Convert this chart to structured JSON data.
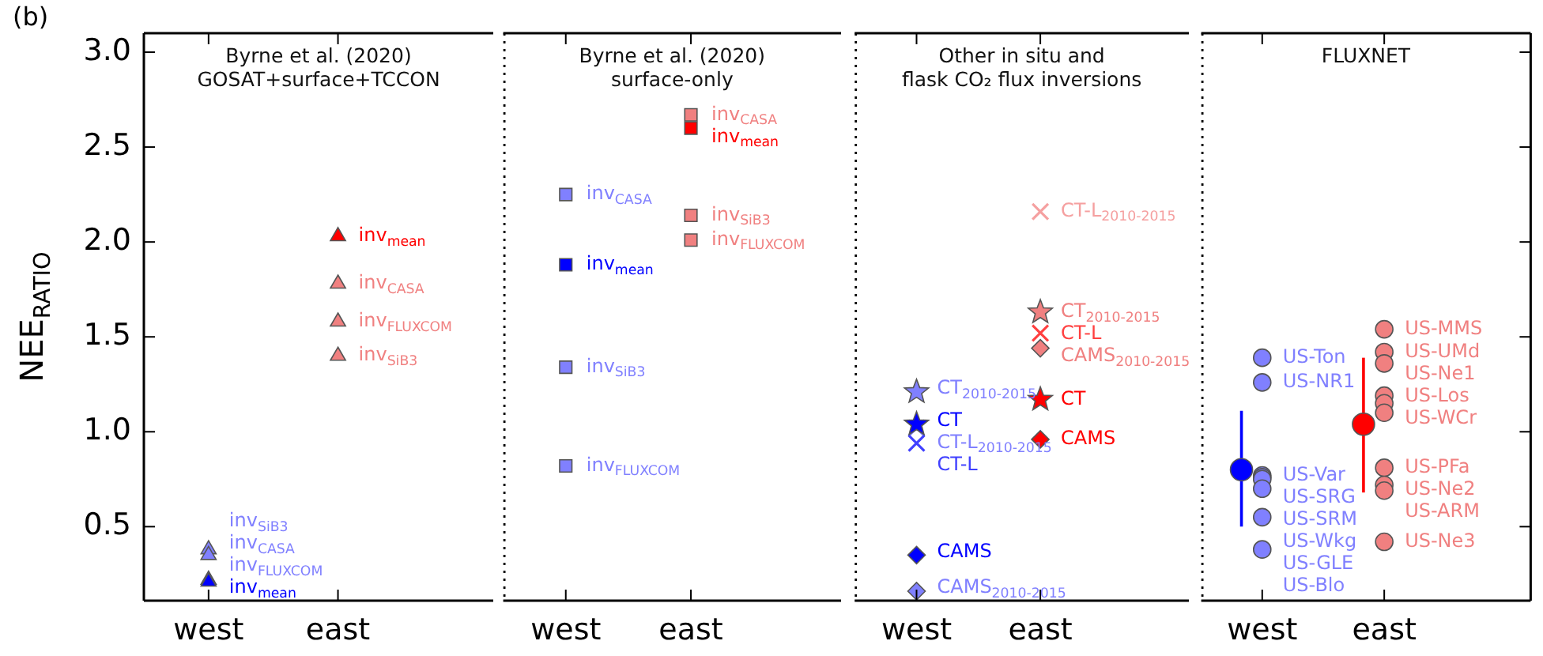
{
  "chart_data": [
    {
      "type": "scatter",
      "title": "Byrne et al. (2020)\nGOSAT+surface+TCCON",
      "ylabel": "NEE$_{RATIO}$",
      "annotations": [
        "(b)"
      ],
      "categories": [
        "west",
        "east"
      ],
      "ylim": [
        0.11,
        3.1
      ],
      "yticks": [
        0.5,
        {
          "value": 1,
          "label": "1.0"
        },
        1.5,
        {
          "value": 2,
          "label": "2.0"
        },
        2.5,
        {
          "value": 3,
          "label": "3.0"
        }
      ],
      "series": [
        {
          "type": "scatter",
          "marker": "triangle",
          "color": "#8080ff",
          "values": [
            0.38,
            null
          ],
          "value_labels": [
            "inv$_{SiB3}$",
            null
          ]
        },
        {
          "type": "scatter",
          "marker": "triangle",
          "color": "#8080ff",
          "values": [
            0.35,
            null
          ],
          "value_labels": [
            "inv$_{CASA}$",
            null
          ]
        },
        {
          "type": "scatter",
          "marker": "triangle",
          "color": "#8080ff",
          "values": [
            0.22,
            null
          ],
          "value_labels": [
            "inv$_{FLUXCOM}$",
            null
          ]
        },
        {
          "type": "scatter",
          "marker": "triangle",
          "color": "#0000ff",
          "values": [
            0.21,
            null
          ],
          "value_labels": [
            "inv$_{mean}$",
            null
          ]
        },
        {
          "type": "scatter",
          "marker": "triangle",
          "color": "#f08080",
          "values": [
            null,
            1.78
          ],
          "value_labels": [
            null,
            "inv$_{CASA}$"
          ]
        },
        {
          "type": "scatter",
          "marker": "triangle",
          "color": "#f08080",
          "values": [
            null,
            1.58
          ],
          "value_labels": [
            null,
            "inv$_{FLUXCOM}$"
          ]
        },
        {
          "type": "scatter",
          "marker": "triangle",
          "color": "#f08080",
          "values": [
            null,
            1.4
          ],
          "value_labels": [
            null,
            "inv$_{SiB3}$"
          ]
        },
        {
          "type": "scatter",
          "marker": "triangle",
          "color": "#ff0000",
          "values": [
            null,
            2.03
          ],
          "value_labels": [
            null,
            "inv$_{mean}$"
          ]
        }
      ]
    },
    {
      "type": "scatter",
      "title": "Byrne et al. (2020)\nsurface-only",
      "tick_labels": "x",
      "categories": [
        "west",
        "east"
      ],
      "ylim": [
        0.11,
        3.1
      ],
      "series": [
        {
          "type": "scatter",
          "marker": "square",
          "color": "#8080ff",
          "values": [
            2.25,
            null
          ],
          "value_labels": [
            "inv$_{CASA}$",
            null
          ]
        },
        {
          "type": "scatter",
          "marker": "square",
          "color": "#8080ff",
          "values": [
            1.34,
            null
          ],
          "value_labels": [
            "inv$_{SiB3}$",
            null
          ]
        },
        {
          "type": "scatter",
          "marker": "square",
          "color": "#8080ff",
          "values": [
            0.82,
            null
          ],
          "value_labels": [
            "inv$_{FLUXCOM}$",
            null
          ]
        },
        {
          "type": "scatter",
          "marker": "square",
          "color": "#0000ff",
          "values": [
            1.88,
            null
          ],
          "value_labels": [
            "inv$_{mean}$",
            null
          ]
        },
        {
          "type": "scatter",
          "marker": "square",
          "color": "#f08080",
          "values": [
            null,
            2.67
          ],
          "value_labels": [
            null,
            "inv$_{CASA}$"
          ]
        },
        {
          "type": "scatter",
          "marker": "square",
          "color": "#f08080",
          "values": [
            null,
            2.14
          ],
          "value_labels": [
            null,
            "inv$_{SiB3}$"
          ]
        },
        {
          "type": "scatter",
          "marker": "square",
          "color": "#f08080",
          "values": [
            null,
            2.01
          ],
          "value_labels": [
            null,
            "inv$_{FLUXCOM}$"
          ]
        },
        {
          "type": "scatter",
          "marker": "square",
          "color": "#ff0000",
          "values": [
            null,
            2.6
          ],
          "value_labels": [
            null,
            "inv$_{mean}$"
          ]
        }
      ]
    },
    {
      "type": "scatter",
      "title": "Other in situ and\nflask CO₂ flux inversions",
      "tick_labels": "x",
      "categories": [
        "west",
        "east"
      ],
      "ylim": [
        0.11,
        3.1
      ],
      "series": [
        {
          "type": "scatter",
          "marker": "star",
          "color": "#8080ff",
          "values": [
            1.21,
            null
          ],
          "value_labels": [
            "CT$_{2010-2015}$",
            null
          ]
        },
        {
          "type": "scatter",
          "marker": "cross",
          "color": "#8080ff",
          "values": [
            1.02,
            null
          ],
          "value_labels": [
            "CT-L$_{2010-2015}$",
            null
          ]
        },
        {
          "type": "scatter",
          "marker": "cross",
          "color": "#4040ff",
          "values": [
            0.94,
            null
          ],
          "value_labels": [
            "CT-L",
            null
          ]
        },
        {
          "type": "scatter",
          "marker": "star",
          "color": "#0000ff",
          "values": [
            1.04,
            null
          ],
          "value_labels": [
            "CT",
            null
          ]
        },
        {
          "type": "scatter",
          "marker": "diamond",
          "color": "#8080ff",
          "values": [
            0.16,
            null
          ],
          "value_labels": [
            "CAMS$_{2010-2015}$",
            null
          ]
        },
        {
          "type": "scatter",
          "marker": "diamond",
          "color": "#0000ff",
          "values": [
            0.35,
            null
          ],
          "value_labels": [
            "CAMS",
            null
          ]
        },
        {
          "type": "scatter",
          "marker": "cross",
          "color": "#f5a0a0",
          "values": [
            null,
            2.16
          ],
          "value_labels": [
            null,
            "CT-L$_{2010-2015}$"
          ]
        },
        {
          "type": "scatter",
          "marker": "star",
          "color": "#f08080",
          "values": [
            null,
            1.63
          ],
          "value_labels": [
            null,
            "CT$_{2010-2015}$"
          ]
        },
        {
          "type": "scatter",
          "marker": "cross",
          "color": "#ff4040",
          "values": [
            null,
            1.52
          ],
          "value_labels": [
            null,
            "CT-L"
          ]
        },
        {
          "type": "scatter",
          "marker": "diamond",
          "color": "#f08080",
          "values": [
            null,
            1.44
          ],
          "value_labels": [
            null,
            "CAMS$_{2010-2015}$"
          ]
        },
        {
          "type": "scatter",
          "marker": "star",
          "color": "#ff0000",
          "values": [
            null,
            1.17
          ],
          "value_labels": [
            null,
            "CT"
          ]
        },
        {
          "type": "scatter",
          "marker": "diamond",
          "color": "#ff0000",
          "values": [
            null,
            0.96
          ],
          "value_labels": [
            null,
            "CAMS"
          ]
        }
      ]
    },
    {
      "type": "scatter",
      "title": "FLUXNET",
      "tick_labels": "x",
      "categories": [
        "west",
        "east"
      ],
      "ylim": [
        0.11,
        3.1
      ],
      "yticks": [
        0.5,
        1,
        1.5,
        2,
        2.5,
        3
      ],
      "series": [
        {
          "type": "scatter",
          "marker": "circle",
          "color": "#8080ff",
          "values": [
            1.39,
            null
          ],
          "value_labels": [
            "US-Ton",
            null
          ]
        },
        {
          "type": "scatter",
          "marker": "circle",
          "color": "#8080ff",
          "values": [
            1.26,
            null
          ],
          "value_labels": [
            "US-NR1",
            null
          ]
        },
        {
          "type": "scatter",
          "marker": "circle",
          "color": "#8080ff",
          "values": [
            0.77,
            null
          ],
          "value_labels": [
            "US-Var",
            null
          ]
        },
        {
          "type": "scatter",
          "marker": "circle",
          "color": "#8080ff",
          "values": [
            0.76,
            null
          ],
          "value_labels": [
            "US-SRG",
            null
          ]
        },
        {
          "type": "scatter",
          "marker": "circle",
          "color": "#8080ff",
          "values": [
            0.75,
            null
          ],
          "value_labels": [
            "US-SRM",
            null
          ]
        },
        {
          "type": "scatter",
          "marker": "circle",
          "color": "#8080ff",
          "values": [
            0.7,
            null
          ],
          "value_labels": [
            "US-Wkg",
            null
          ]
        },
        {
          "type": "scatter",
          "marker": "circle",
          "color": "#8080ff",
          "values": [
            0.55,
            null
          ],
          "value_labels": [
            "US-GLE",
            null
          ]
        },
        {
          "type": "scatter",
          "marker": "circle",
          "color": "#8080ff",
          "values": [
            0.38,
            null
          ],
          "value_labels": [
            "US-Blo",
            null
          ]
        },
        {
          "type": "scatter",
          "marker": "circle",
          "color": "#0000ff",
          "values": [
            0.8,
            null
          ],
          "errors": [
            [
              0.5,
              1.11
            ],
            null
          ]
        },
        {
          "type": "scatter",
          "marker": "circle",
          "color": "#f08080",
          "values": [
            null,
            1.54
          ],
          "value_labels": [
            null,
            "US-MMS"
          ]
        },
        {
          "type": "scatter",
          "marker": "circle",
          "color": "#f08080",
          "values": [
            null,
            1.42
          ],
          "value_labels": [
            null,
            "US-UMd"
          ]
        },
        {
          "type": "scatter",
          "marker": "circle",
          "color": "#f08080",
          "values": [
            null,
            1.36
          ],
          "value_labels": [
            null,
            "US-Ne1"
          ]
        },
        {
          "type": "scatter",
          "marker": "circle",
          "color": "#f08080",
          "values": [
            null,
            1.19
          ],
          "value_labels": [
            null,
            "US-Los"
          ]
        },
        {
          "type": "scatter",
          "marker": "circle",
          "color": "#f08080",
          "values": [
            null,
            1.15
          ]
        },
        {
          "type": "scatter",
          "marker": "circle",
          "color": "#f08080",
          "values": [
            null,
            1.1
          ],
          "value_labels": [
            null,
            "US-WCr"
          ]
        },
        {
          "type": "scatter",
          "marker": "circle",
          "color": "#f08080",
          "values": [
            null,
            0.81
          ],
          "value_labels": [
            null,
            "US-PFa"
          ]
        },
        {
          "type": "scatter",
          "marker": "circle",
          "color": "#f08080",
          "values": [
            null,
            0.72
          ],
          "value_labels": [
            null,
            "US-Ne2"
          ]
        },
        {
          "type": "scatter",
          "marker": "circle",
          "color": "#f08080",
          "values": [
            null,
            0.69
          ],
          "value_labels": [
            null,
            "US-ARM"
          ]
        },
        {
          "type": "scatter",
          "marker": "circle",
          "color": "#f08080",
          "values": [
            null,
            0.42
          ],
          "value_labels": [
            null,
            "US-Ne3"
          ]
        },
        {
          "type": "scatter",
          "marker": "circle",
          "color": "#ff0000",
          "values": [
            null,
            1.04
          ],
          "errors": [
            null,
            [
              0.68,
              1.39
            ]
          ]
        }
      ]
    }
  ]
}
